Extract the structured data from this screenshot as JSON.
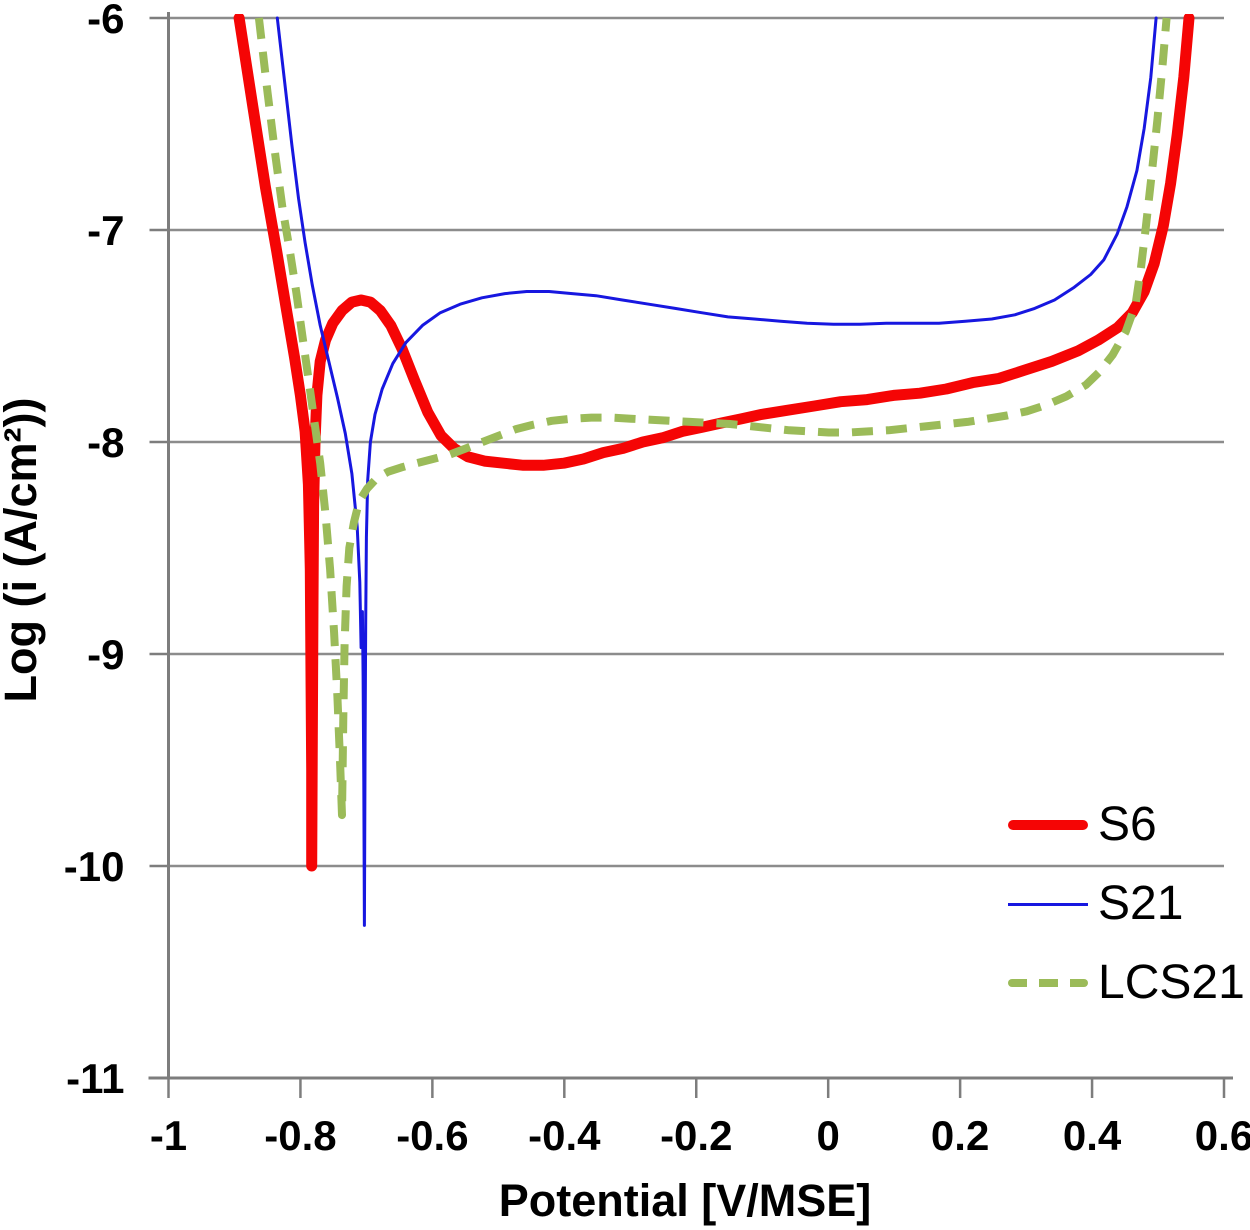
{
  "chart_data": {
    "type": "line",
    "title": "",
    "xlabel": "Potential [V/MSE]",
    "ylabel": "Log (i (A/cm²))",
    "xlim": [
      -1,
      0.6
    ],
    "ylim": [
      -11,
      -6
    ],
    "grid": "horizontal",
    "grid_color": "#8c8c8c",
    "axis_color": "#7d7d7d",
    "legend_position": "bottom-right",
    "x_ticks": [
      -1,
      -0.8,
      -0.6,
      -0.4,
      -0.2,
      0,
      0.2,
      0.4,
      0.6
    ],
    "x_tick_labels": [
      "-1",
      "-0.8",
      "-0.6",
      "-0.4",
      "-0.2",
      "0",
      "0.2",
      "0.4",
      "0.6"
    ],
    "y_ticks": [
      -6,
      -7,
      -8,
      -9,
      -10,
      -11
    ],
    "y_tick_labels": [
      "-6",
      "-7",
      "-8",
      "-9",
      "-10",
      "-11"
    ],
    "series": [
      {
        "name": "S6",
        "color": "#f50505",
        "style": "solid",
        "width": 11,
        "points": [
          [
            -0.893,
            -6.0
          ],
          [
            -0.872,
            -6.42
          ],
          [
            -0.853,
            -6.8
          ],
          [
            -0.836,
            -7.1
          ],
          [
            -0.821,
            -7.38
          ],
          [
            -0.809,
            -7.6
          ],
          [
            -0.8,
            -7.78
          ],
          [
            -0.793,
            -7.95
          ],
          [
            -0.788,
            -8.2
          ],
          [
            -0.785,
            -8.6
          ],
          [
            -0.784,
            -9.1
          ],
          [
            -0.783,
            -9.55
          ],
          [
            -0.783,
            -10.0
          ],
          [
            -0.782,
            -9.4
          ],
          [
            -0.781,
            -8.75
          ],
          [
            -0.78,
            -8.3
          ],
          [
            -0.778,
            -8.0
          ],
          [
            -0.775,
            -7.78
          ],
          [
            -0.77,
            -7.62
          ],
          [
            -0.762,
            -7.52
          ],
          [
            -0.751,
            -7.44
          ],
          [
            -0.737,
            -7.38
          ],
          [
            -0.722,
            -7.34
          ],
          [
            -0.708,
            -7.33
          ],
          [
            -0.694,
            -7.34
          ],
          [
            -0.679,
            -7.38
          ],
          [
            -0.663,
            -7.45
          ],
          [
            -0.646,
            -7.56
          ],
          [
            -0.627,
            -7.71
          ],
          [
            -0.607,
            -7.86
          ],
          [
            -0.587,
            -7.97
          ],
          [
            -0.567,
            -8.03
          ],
          [
            -0.546,
            -8.07
          ],
          [
            -0.521,
            -8.09
          ],
          [
            -0.492,
            -8.1
          ],
          [
            -0.462,
            -8.11
          ],
          [
            -0.432,
            -8.11
          ],
          [
            -0.401,
            -8.1
          ],
          [
            -0.371,
            -8.08
          ],
          [
            -0.341,
            -8.05
          ],
          [
            -0.311,
            -8.03
          ],
          [
            -0.281,
            -8.0
          ],
          [
            -0.251,
            -7.98
          ],
          [
            -0.221,
            -7.95
          ],
          [
            -0.191,
            -7.93
          ],
          [
            -0.161,
            -7.91
          ],
          [
            -0.131,
            -7.89
          ],
          [
            -0.101,
            -7.87
          ],
          [
            -0.061,
            -7.85
          ],
          [
            -0.021,
            -7.83
          ],
          [
            0.019,
            -7.81
          ],
          [
            0.059,
            -7.8
          ],
          [
            0.099,
            -7.78
          ],
          [
            0.139,
            -7.77
          ],
          [
            0.179,
            -7.75
          ],
          [
            0.219,
            -7.72
          ],
          [
            0.259,
            -7.7
          ],
          [
            0.299,
            -7.66
          ],
          [
            0.339,
            -7.62
          ],
          [
            0.379,
            -7.57
          ],
          [
            0.409,
            -7.52
          ],
          [
            0.439,
            -7.46
          ],
          [
            0.461,
            -7.39
          ],
          [
            0.479,
            -7.29
          ],
          [
            0.494,
            -7.16
          ],
          [
            0.508,
            -6.98
          ],
          [
            0.519,
            -6.78
          ],
          [
            0.529,
            -6.55
          ],
          [
            0.539,
            -6.28
          ],
          [
            0.547,
            -6.0
          ]
        ]
      },
      {
        "name": "S21",
        "color": "#1717e0",
        "style": "solid",
        "width": 3,
        "points": [
          [
            -0.835,
            -6.0
          ],
          [
            -0.824,
            -6.3
          ],
          [
            -0.813,
            -6.6
          ],
          [
            -0.803,
            -6.85
          ],
          [
            -0.793,
            -7.06
          ],
          [
            -0.782,
            -7.26
          ],
          [
            -0.77,
            -7.45
          ],
          [
            -0.757,
            -7.62
          ],
          [
            -0.744,
            -7.79
          ],
          [
            -0.732,
            -7.96
          ],
          [
            -0.722,
            -8.15
          ],
          [
            -0.714,
            -8.4
          ],
          [
            -0.71,
            -8.66
          ],
          [
            -0.708,
            -8.97
          ],
          [
            -0.706,
            -8.8
          ],
          [
            -0.705,
            -9.1
          ],
          [
            -0.704,
            -9.6
          ],
          [
            -0.703,
            -10.28
          ],
          [
            -0.702,
            -9.4
          ],
          [
            -0.701,
            -8.85
          ],
          [
            -0.7,
            -8.45
          ],
          [
            -0.698,
            -8.18
          ],
          [
            -0.694,
            -8.0
          ],
          [
            -0.687,
            -7.87
          ],
          [
            -0.676,
            -7.75
          ],
          [
            -0.66,
            -7.63
          ],
          [
            -0.64,
            -7.53
          ],
          [
            -0.615,
            -7.45
          ],
          [
            -0.588,
            -7.39
          ],
          [
            -0.558,
            -7.35
          ],
          [
            -0.525,
            -7.32
          ],
          [
            -0.49,
            -7.3
          ],
          [
            -0.457,
            -7.29
          ],
          [
            -0.423,
            -7.29
          ],
          [
            -0.388,
            -7.3
          ],
          [
            -0.352,
            -7.31
          ],
          [
            -0.312,
            -7.33
          ],
          [
            -0.272,
            -7.35
          ],
          [
            -0.232,
            -7.37
          ],
          [
            -0.192,
            -7.39
          ],
          [
            -0.152,
            -7.41
          ],
          [
            -0.112,
            -7.42
          ],
          [
            -0.072,
            -7.43
          ],
          [
            -0.032,
            -7.44
          ],
          [
            0.008,
            -7.445
          ],
          [
            0.048,
            -7.445
          ],
          [
            0.088,
            -7.44
          ],
          [
            0.128,
            -7.44
          ],
          [
            0.168,
            -7.44
          ],
          [
            0.208,
            -7.43
          ],
          [
            0.248,
            -7.42
          ],
          [
            0.283,
            -7.4
          ],
          [
            0.313,
            -7.37
          ],
          [
            0.343,
            -7.33
          ],
          [
            0.373,
            -7.27
          ],
          [
            0.398,
            -7.21
          ],
          [
            0.418,
            -7.14
          ],
          [
            0.438,
            -7.02
          ],
          [
            0.453,
            -6.89
          ],
          [
            0.468,
            -6.72
          ],
          [
            0.479,
            -6.52
          ],
          [
            0.489,
            -6.28
          ],
          [
            0.497,
            -6.0
          ]
        ]
      },
      {
        "name": "LCS21",
        "color": "#9bbb59",
        "style": "dashed",
        "width": 8,
        "points": [
          [
            -0.863,
            -6.0
          ],
          [
            -0.85,
            -6.35
          ],
          [
            -0.838,
            -6.65
          ],
          [
            -0.827,
            -6.9
          ],
          [
            -0.816,
            -7.1
          ],
          [
            -0.806,
            -7.3
          ],
          [
            -0.797,
            -7.5
          ],
          [
            -0.788,
            -7.7
          ],
          [
            -0.779,
            -7.9
          ],
          [
            -0.77,
            -8.1
          ],
          [
            -0.762,
            -8.34
          ],
          [
            -0.755,
            -8.6
          ],
          [
            -0.749,
            -8.9
          ],
          [
            -0.744,
            -9.2
          ],
          [
            -0.74,
            -9.5
          ],
          [
            -0.737,
            -9.76
          ],
          [
            -0.735,
            -9.3
          ],
          [
            -0.733,
            -8.95
          ],
          [
            -0.73,
            -8.68
          ],
          [
            -0.726,
            -8.5
          ],
          [
            -0.719,
            -8.38
          ],
          [
            -0.711,
            -8.28
          ],
          [
            -0.699,
            -8.22
          ],
          [
            -0.684,
            -8.17
          ],
          [
            -0.667,
            -8.14
          ],
          [
            -0.647,
            -8.12
          ],
          [
            -0.624,
            -8.1
          ],
          [
            -0.599,
            -8.08
          ],
          [
            -0.574,
            -8.06
          ],
          [
            -0.549,
            -8.03
          ],
          [
            -0.524,
            -8.0
          ],
          [
            -0.499,
            -7.97
          ],
          [
            -0.474,
            -7.94
          ],
          [
            -0.449,
            -7.92
          ],
          [
            -0.419,
            -7.9
          ],
          [
            -0.389,
            -7.89
          ],
          [
            -0.359,
            -7.885
          ],
          [
            -0.329,
            -7.885
          ],
          [
            -0.299,
            -7.89
          ],
          [
            -0.269,
            -7.895
          ],
          [
            -0.239,
            -7.9
          ],
          [
            -0.209,
            -7.905
          ],
          [
            -0.179,
            -7.91
          ],
          [
            -0.149,
            -7.915
          ],
          [
            -0.119,
            -7.925
          ],
          [
            -0.089,
            -7.935
          ],
          [
            -0.059,
            -7.945
          ],
          [
            -0.029,
            -7.95
          ],
          [
            0.001,
            -7.955
          ],
          [
            0.031,
            -7.955
          ],
          [
            0.061,
            -7.95
          ],
          [
            0.091,
            -7.945
          ],
          [
            0.121,
            -7.935
          ],
          [
            0.151,
            -7.925
          ],
          [
            0.181,
            -7.915
          ],
          [
            0.211,
            -7.905
          ],
          [
            0.241,
            -7.89
          ],
          [
            0.271,
            -7.875
          ],
          [
            0.301,
            -7.855
          ],
          [
            0.331,
            -7.825
          ],
          [
            0.361,
            -7.785
          ],
          [
            0.391,
            -7.73
          ],
          [
            0.411,
            -7.67
          ],
          [
            0.431,
            -7.59
          ],
          [
            0.451,
            -7.48
          ],
          [
            0.466,
            -7.35
          ],
          [
            0.474,
            -7.18
          ],
          [
            0.481,
            -7.0
          ],
          [
            0.49,
            -6.75
          ],
          [
            0.499,
            -6.48
          ],
          [
            0.507,
            -6.22
          ],
          [
            0.513,
            -6.0
          ]
        ]
      }
    ]
  },
  "legend": {
    "items": [
      {
        "label": "S6"
      },
      {
        "label": "S21"
      },
      {
        "label": "LCS21"
      }
    ]
  }
}
